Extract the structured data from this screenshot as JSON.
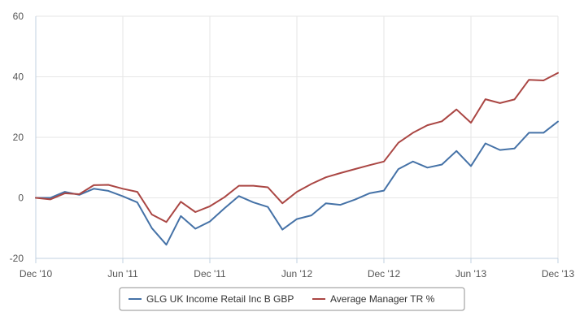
{
  "chart_data": {
    "type": "line",
    "title": "",
    "xlabel": "",
    "ylabel": "",
    "ylim": [
      -20,
      60
    ],
    "y_ticks": [
      -20,
      0,
      20,
      40,
      60
    ],
    "x_tick_labels": [
      "Dec '10",
      "Jun '11",
      "Dec '11",
      "Jun '12",
      "Dec '12",
      "Jun '13",
      "Dec '13"
    ],
    "x": [
      "2010-12",
      "2011-01",
      "2011-02",
      "2011-03",
      "2011-04",
      "2011-05",
      "2011-06",
      "2011-07",
      "2011-08",
      "2011-09",
      "2011-10",
      "2011-11",
      "2011-12",
      "2012-01",
      "2012-02",
      "2012-03",
      "2012-04",
      "2012-05",
      "2012-06",
      "2012-07",
      "2012-08",
      "2012-09",
      "2012-10",
      "2012-11",
      "2012-12",
      "2013-01",
      "2013-02",
      "2013-03",
      "2013-04",
      "2013-05",
      "2013-06",
      "2013-07",
      "2013-08",
      "2013-09",
      "2013-10",
      "2013-11",
      "2013-12"
    ],
    "grid": true,
    "legend_position": "bottom-center",
    "series": [
      {
        "name": "GLG UK Income Retail Inc B GBP",
        "color": "#4572a7",
        "values": [
          0,
          0,
          2,
          1,
          3,
          2.3,
          0.5,
          -1.5,
          -10,
          -15.5,
          -6,
          -10.2,
          -7.8,
          -3.5,
          0.6,
          -1.5,
          -3,
          -10.5,
          -7,
          -5.8,
          -1.8,
          -2.3,
          -0.6,
          1.5,
          2.4,
          9.5,
          12,
          10,
          11,
          15.5,
          10.5,
          18,
          15.8,
          16.3,
          21.5,
          21.5,
          25.2
        ]
      },
      {
        "name": "Average Manager TR %",
        "color": "#aa4643",
        "values": [
          0,
          -0.5,
          1.5,
          1.2,
          4.2,
          4.3,
          3,
          2,
          -5.5,
          -8,
          -1.3,
          -4.7,
          -2.8,
          0.2,
          4,
          4,
          3.5,
          -1.8,
          2,
          4.6,
          6.8,
          8.2,
          9.5,
          10.8,
          12,
          18.2,
          21.5,
          24,
          25.3,
          29.2,
          24.8,
          32.6,
          31.3,
          32.5,
          39,
          38.8,
          41.3
        ]
      }
    ]
  }
}
